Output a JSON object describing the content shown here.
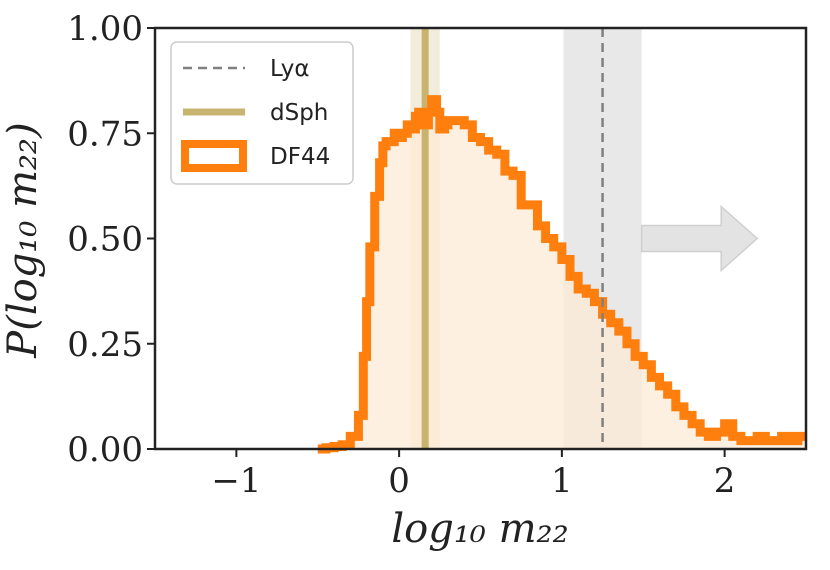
{
  "chart_data": {
    "type": "histogram",
    "xlabel": "log₁₀ m₂₂",
    "ylabel": "P(log₁₀ m₂₂)",
    "xlim": [
      -1.5,
      2.5
    ],
    "ylim": [
      0.0,
      1.0
    ],
    "xticks": [
      -1,
      0,
      1,
      2
    ],
    "xtick_labels": [
      "−1",
      "0",
      "1",
      "2"
    ],
    "yticks": [
      0.0,
      0.25,
      0.5,
      0.75,
      1.0
    ],
    "ytick_labels": [
      "0.00",
      "0.25",
      "0.50",
      "0.75",
      "1.00"
    ],
    "legend": {
      "location": "upper-left",
      "entries": [
        {
          "label": "Lyα",
          "style": "dashed-line",
          "color": "#808080"
        },
        {
          "label": "dSph",
          "style": "solid-line",
          "color": "#c8b46e"
        },
        {
          "label": "DF44",
          "style": "step-outline",
          "color": "#ff7f0e"
        }
      ]
    },
    "bands": [
      {
        "name": "Lyα",
        "center": 1.25,
        "x0": 1.01,
        "x1": 1.49,
        "color": "#b4b4b4"
      },
      {
        "name": "dSph",
        "center": 0.16,
        "x0": 0.07,
        "x1": 0.25,
        "color": "#c8b46e"
      }
    ],
    "arrow": {
      "x0": 1.49,
      "x1": 2.2,
      "y": 0.5,
      "direction": "right"
    },
    "series": [
      {
        "name": "DF44",
        "color": "#ff7f0e",
        "fill": "#fdebd6",
        "x": [
          -0.5,
          -0.45,
          -0.4,
          -0.35,
          -0.3,
          -0.25,
          -0.22,
          -0.2,
          -0.18,
          -0.15,
          -0.12,
          -0.1,
          -0.08,
          -0.05,
          -0.03,
          0.0,
          0.02,
          0.05,
          0.08,
          0.1,
          0.12,
          0.15,
          0.18,
          0.2,
          0.23,
          0.25,
          0.28,
          0.3,
          0.35,
          0.4,
          0.45,
          0.5,
          0.55,
          0.6,
          0.65,
          0.7,
          0.75,
          0.8,
          0.85,
          0.9,
          0.95,
          1.0,
          1.05,
          1.1,
          1.15,
          1.2,
          1.25,
          1.3,
          1.35,
          1.4,
          1.45,
          1.5,
          1.55,
          1.6,
          1.65,
          1.7,
          1.75,
          1.8,
          1.85,
          1.9,
          1.95,
          2.0,
          2.05,
          2.1,
          2.15,
          2.2,
          2.25,
          2.3,
          2.35,
          2.4,
          2.45,
          2.5
        ],
        "y": [
          0.0,
          0.003,
          0.006,
          0.01,
          0.03,
          0.08,
          0.22,
          0.35,
          0.48,
          0.6,
          0.68,
          0.72,
          0.73,
          0.73,
          0.75,
          0.74,
          0.75,
          0.77,
          0.76,
          0.79,
          0.8,
          0.77,
          0.8,
          0.83,
          0.8,
          0.76,
          0.77,
          0.78,
          0.78,
          0.77,
          0.74,
          0.73,
          0.71,
          0.7,
          0.66,
          0.65,
          0.58,
          0.58,
          0.53,
          0.5,
          0.48,
          0.45,
          0.41,
          0.38,
          0.37,
          0.35,
          0.32,
          0.3,
          0.28,
          0.25,
          0.22,
          0.2,
          0.17,
          0.15,
          0.13,
          0.1,
          0.08,
          0.06,
          0.04,
          0.03,
          0.04,
          0.06,
          0.03,
          0.02,
          0.02,
          0.03,
          0.02,
          0.02,
          0.03,
          0.02,
          0.03,
          0.03
        ]
      }
    ]
  }
}
